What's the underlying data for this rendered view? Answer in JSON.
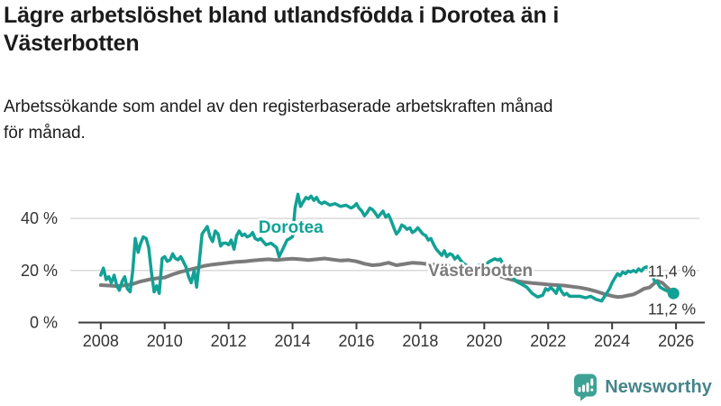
{
  "header": {
    "title": "Lägre arbetslöshet bland utlandsfödda i Dorotea än i\nVästerbotten",
    "subtitle": "Arbetssökande som andel av den registerbaserade arbetskraften månad\nför månad."
  },
  "footer": {
    "brand": "Newsworthy",
    "logo_icon": "newsworthy-speech-bubble-bar-chart-icon",
    "logo_bubble_color": "#3da293",
    "logo_text_color": "#46858a"
  },
  "colors": {
    "dorotea": "#12a195",
    "vasterbotten": "#7b7b7b",
    "gridline": "#d9d9d9",
    "axis": "#3c3c3c",
    "tick_label": "#333333",
    "end_label": "#333333"
  },
  "chart_data": {
    "type": "line",
    "title": "Lägre arbetslöshet bland utlandsfödda i Dorotea än i Västerbotten",
    "subtitle": "Arbetssökande som andel av den registerbaserade arbetskraften månad för månad.",
    "xlabel": "",
    "ylabel": "",
    "grid": "horizontal",
    "legend_position": "inline-labels",
    "xlim": [
      2007.3,
      2026.9
    ],
    "ylim": [
      0,
      52
    ],
    "x_axis": {
      "ticks": [
        2008,
        2010,
        2012,
        2014,
        2016,
        2018,
        2020,
        2022,
        2024,
        2026
      ],
      "labels": [
        "2008",
        "2010",
        "2012",
        "2014",
        "2016",
        "2018",
        "2020",
        "2022",
        "2024",
        "2026"
      ]
    },
    "y_axis": {
      "ticks": [
        0,
        20,
        40
      ],
      "labels": [
        "0 %",
        "20 %",
        "40 %"
      ]
    },
    "series": [
      {
        "name": "Västerbotten",
        "color": "#7b7b7b",
        "stroke_width": 4,
        "end_dot": false,
        "last_value_label": "11,4 %",
        "points": [
          [
            2008.0,
            14.4
          ],
          [
            2008.25,
            14.2
          ],
          [
            2008.5,
            14.0
          ],
          [
            2008.75,
            14.3
          ],
          [
            2009.0,
            14.8
          ],
          [
            2009.25,
            15.8
          ],
          [
            2009.5,
            16.5
          ],
          [
            2009.75,
            17.0
          ],
          [
            2010.0,
            17.3
          ],
          [
            2010.25,
            18.5
          ],
          [
            2010.5,
            19.5
          ],
          [
            2010.75,
            20.2
          ],
          [
            2011.0,
            21.0
          ],
          [
            2011.25,
            21.8
          ],
          [
            2011.5,
            22.3
          ],
          [
            2011.75,
            22.6
          ],
          [
            2012.0,
            23.0
          ],
          [
            2012.25,
            23.3
          ],
          [
            2012.5,
            23.5
          ],
          [
            2012.75,
            23.8
          ],
          [
            2013.0,
            24.1
          ],
          [
            2013.25,
            24.3
          ],
          [
            2013.5,
            24.0
          ],
          [
            2013.75,
            24.3
          ],
          [
            2014.0,
            24.5
          ],
          [
            2014.25,
            24.3
          ],
          [
            2014.5,
            24.0
          ],
          [
            2014.75,
            24.3
          ],
          [
            2015.0,
            24.6
          ],
          [
            2015.25,
            24.2
          ],
          [
            2015.5,
            23.8
          ],
          [
            2015.75,
            24.0
          ],
          [
            2016.0,
            23.5
          ],
          [
            2016.25,
            22.6
          ],
          [
            2016.5,
            22.0
          ],
          [
            2016.75,
            22.3
          ],
          [
            2017.0,
            23.0
          ],
          [
            2017.25,
            22.0
          ],
          [
            2017.5,
            22.5
          ],
          [
            2017.75,
            23.0
          ],
          [
            2018.0,
            22.8
          ],
          [
            2018.25,
            22.4
          ],
          [
            2018.5,
            22.2
          ],
          [
            2018.75,
            22.0
          ],
          [
            2019.0,
            21.3
          ],
          [
            2019.25,
            20.5
          ],
          [
            2019.5,
            19.8
          ],
          [
            2019.75,
            19.2
          ],
          [
            2020.0,
            18.8
          ],
          [
            2020.25,
            18.3
          ],
          [
            2020.5,
            17.8
          ],
          [
            2020.75,
            16.8
          ],
          [
            2021.0,
            16.0
          ],
          [
            2021.25,
            15.5
          ],
          [
            2021.5,
            15.2
          ],
          [
            2021.75,
            14.9
          ],
          [
            2022.0,
            14.6
          ],
          [
            2022.25,
            14.4
          ],
          [
            2022.5,
            14.2
          ],
          [
            2022.75,
            13.8
          ],
          [
            2023.0,
            13.4
          ],
          [
            2023.25,
            12.8
          ],
          [
            2023.5,
            12.0
          ],
          [
            2023.75,
            11.0
          ],
          [
            2024.0,
            10.2
          ],
          [
            2024.17,
            9.8
          ],
          [
            2024.33,
            10.0
          ],
          [
            2024.5,
            10.4
          ],
          [
            2024.67,
            10.8
          ],
          [
            2024.83,
            11.8
          ],
          [
            2025.0,
            13.0
          ],
          [
            2025.17,
            13.5
          ],
          [
            2025.33,
            15.2
          ],
          [
            2025.42,
            16.0
          ],
          [
            2025.5,
            15.6
          ],
          [
            2025.58,
            15.2
          ],
          [
            2025.67,
            14.1
          ],
          [
            2025.75,
            13.2
          ],
          [
            2025.83,
            12.3
          ],
          [
            2025.92,
            11.4
          ]
        ]
      },
      {
        "name": "Dorotea",
        "color": "#12a195",
        "stroke_width": 3.5,
        "end_dot": true,
        "last_value_label": "11,2 %",
        "points": [
          [
            2008.0,
            18.2
          ],
          [
            2008.08,
            20.9
          ],
          [
            2008.17,
            16.5
          ],
          [
            2008.25,
            17.6
          ],
          [
            2008.33,
            15.3
          ],
          [
            2008.42,
            18.2
          ],
          [
            2008.5,
            14.1
          ],
          [
            2008.58,
            12.4
          ],
          [
            2008.67,
            15.9
          ],
          [
            2008.75,
            17.6
          ],
          [
            2008.83,
            13.0
          ],
          [
            2008.92,
            11.8
          ],
          [
            2009.0,
            20.0
          ],
          [
            2009.08,
            32.3
          ],
          [
            2009.17,
            27.0
          ],
          [
            2009.25,
            30.5
          ],
          [
            2009.33,
            32.9
          ],
          [
            2009.42,
            32.3
          ],
          [
            2009.5,
            28.8
          ],
          [
            2009.58,
            20.0
          ],
          [
            2009.67,
            11.8
          ],
          [
            2009.75,
            14.1
          ],
          [
            2009.83,
            11.2
          ],
          [
            2009.92,
            24.7
          ],
          [
            2010.0,
            25.3
          ],
          [
            2010.08,
            23.5
          ],
          [
            2010.17,
            24.1
          ],
          [
            2010.25,
            26.4
          ],
          [
            2010.33,
            24.7
          ],
          [
            2010.42,
            24.1
          ],
          [
            2010.5,
            25.3
          ],
          [
            2010.58,
            23.5
          ],
          [
            2010.67,
            21.2
          ],
          [
            2010.75,
            17.6
          ],
          [
            2010.83,
            15.3
          ],
          [
            2010.92,
            20.0
          ],
          [
            2011.0,
            13.6
          ],
          [
            2011.08,
            22.9
          ],
          [
            2011.17,
            34.0
          ],
          [
            2011.33,
            36.9
          ],
          [
            2011.42,
            32.9
          ],
          [
            2011.5,
            31.1
          ],
          [
            2011.58,
            35.2
          ],
          [
            2011.67,
            34.0
          ],
          [
            2011.75,
            29.4
          ],
          [
            2011.83,
            30.5
          ],
          [
            2011.92,
            30.5
          ],
          [
            2012.0,
            29.9
          ],
          [
            2012.08,
            31.7
          ],
          [
            2012.17,
            28.2
          ],
          [
            2012.25,
            33.4
          ],
          [
            2012.33,
            35.2
          ],
          [
            2012.42,
            33.4
          ],
          [
            2012.5,
            34.0
          ],
          [
            2012.58,
            32.9
          ],
          [
            2012.67,
            33.4
          ],
          [
            2012.75,
            34.6
          ],
          [
            2012.83,
            32.3
          ],
          [
            2012.92,
            31.7
          ],
          [
            2013.0,
            32.3
          ],
          [
            2013.17,
            29.9
          ],
          [
            2013.33,
            30.5
          ],
          [
            2013.5,
            28.8
          ],
          [
            2013.58,
            25.3
          ],
          [
            2013.67,
            27.6
          ],
          [
            2013.83,
            31.7
          ],
          [
            2013.92,
            32.3
          ],
          [
            2014.0,
            33.0
          ],
          [
            2014.08,
            44.0
          ],
          [
            2014.17,
            49.3
          ],
          [
            2014.25,
            44.6
          ],
          [
            2014.33,
            46.3
          ],
          [
            2014.42,
            48.1
          ],
          [
            2014.5,
            47.5
          ],
          [
            2014.58,
            48.6
          ],
          [
            2014.67,
            46.9
          ],
          [
            2014.75,
            48.1
          ],
          [
            2014.83,
            46.3
          ],
          [
            2014.92,
            45.7
          ],
          [
            2015.0,
            46.3
          ],
          [
            2015.17,
            45.1
          ],
          [
            2015.33,
            45.7
          ],
          [
            2015.5,
            44.6
          ],
          [
            2015.67,
            45.1
          ],
          [
            2015.83,
            44.0
          ],
          [
            2015.92,
            44.6
          ],
          [
            2016.0,
            45.7
          ],
          [
            2016.08,
            44.0
          ],
          [
            2016.17,
            42.8
          ],
          [
            2016.25,
            41.0
          ],
          [
            2016.33,
            42.2
          ],
          [
            2016.42,
            44.0
          ],
          [
            2016.5,
            43.4
          ],
          [
            2016.58,
            42.2
          ],
          [
            2016.67,
            40.5
          ],
          [
            2016.75,
            41.6
          ],
          [
            2016.83,
            42.8
          ],
          [
            2016.92,
            40.5
          ],
          [
            2017.0,
            41.5
          ],
          [
            2017.08,
            39.3
          ],
          [
            2017.17,
            36.4
          ],
          [
            2017.25,
            34.0
          ],
          [
            2017.33,
            35.2
          ],
          [
            2017.42,
            37.5
          ],
          [
            2017.5,
            36.9
          ],
          [
            2017.58,
            35.8
          ],
          [
            2017.67,
            36.4
          ],
          [
            2017.75,
            34.6
          ],
          [
            2017.83,
            35.2
          ],
          [
            2017.92,
            36.4
          ],
          [
            2018.0,
            35.2
          ],
          [
            2018.08,
            34.0
          ],
          [
            2018.17,
            33.4
          ],
          [
            2018.25,
            31.7
          ],
          [
            2018.33,
            32.3
          ],
          [
            2018.42,
            29.9
          ],
          [
            2018.5,
            28.2
          ],
          [
            2018.58,
            27.0
          ],
          [
            2018.67,
            25.8
          ],
          [
            2018.75,
            27.6
          ],
          [
            2018.83,
            25.3
          ],
          [
            2018.92,
            26.4
          ],
          [
            2019.0,
            26.0
          ],
          [
            2019.08,
            24.4
          ],
          [
            2019.17,
            25.5
          ],
          [
            2019.25,
            24.1
          ],
          [
            2019.33,
            22.9
          ],
          [
            2019.5,
            21.5
          ],
          [
            2019.67,
            21.0
          ],
          [
            2019.83,
            22.0
          ],
          [
            2020.0,
            22.0
          ],
          [
            2020.17,
            23.5
          ],
          [
            2020.33,
            24.5
          ],
          [
            2020.42,
            24.0
          ],
          [
            2020.5,
            24.4
          ],
          [
            2020.58,
            22.5
          ],
          [
            2020.75,
            20.0
          ],
          [
            2020.92,
            17.0
          ],
          [
            2021.0,
            15.8
          ],
          [
            2021.17,
            14.7
          ],
          [
            2021.33,
            13.6
          ],
          [
            2021.5,
            11.2
          ],
          [
            2021.67,
            9.8
          ],
          [
            2021.83,
            10.5
          ],
          [
            2021.92,
            13.0
          ],
          [
            2022.0,
            12.4
          ],
          [
            2022.08,
            13.5
          ],
          [
            2022.17,
            12.4
          ],
          [
            2022.25,
            11.2
          ],
          [
            2022.33,
            14.0
          ],
          [
            2022.42,
            11.9
          ],
          [
            2022.5,
            10.6
          ],
          [
            2022.58,
            11.2
          ],
          [
            2022.67,
            10.1
          ],
          [
            2022.83,
            10.1
          ],
          [
            2023.0,
            10.1
          ],
          [
            2023.17,
            9.5
          ],
          [
            2023.33,
            10.1
          ],
          [
            2023.5,
            8.9
          ],
          [
            2023.67,
            8.3
          ],
          [
            2023.83,
            11.2
          ],
          [
            2023.92,
            13.0
          ],
          [
            2024.0,
            15.3
          ],
          [
            2024.08,
            17.0
          ],
          [
            2024.17,
            18.8
          ],
          [
            2024.25,
            18.0
          ],
          [
            2024.33,
            19.4
          ],
          [
            2024.42,
            18.8
          ],
          [
            2024.5,
            19.8
          ],
          [
            2024.58,
            19.4
          ],
          [
            2024.67,
            20.0
          ],
          [
            2024.75,
            19.4
          ],
          [
            2024.83,
            20.6
          ],
          [
            2024.92,
            19.8
          ],
          [
            2025.0,
            21.0
          ],
          [
            2025.08,
            21.4
          ],
          [
            2025.17,
            20.6
          ],
          [
            2025.25,
            18.2
          ],
          [
            2025.33,
            15.9
          ],
          [
            2025.42,
            15.3
          ],
          [
            2025.5,
            13.6
          ],
          [
            2025.58,
            13.0
          ],
          [
            2025.67,
            12.4
          ],
          [
            2025.75,
            12.0
          ],
          [
            2025.83,
            11.6
          ],
          [
            2025.92,
            11.2
          ]
        ]
      }
    ],
    "annotations": {
      "series_labels": [
        {
          "text": "Dorotea",
          "x": 2013.95,
          "y": 36.5,
          "color": "#12a195"
        },
        {
          "text": "Västerbotten",
          "x": 2019.88,
          "y": 20.0,
          "color": "#7b7b7b"
        }
      ],
      "end_labels": [
        {
          "text": "11,4 %",
          "x": 2025.12,
          "y": 17.7
        },
        {
          "text": "11,2 %",
          "x": 2025.12,
          "y": 3.1
        }
      ]
    }
  }
}
